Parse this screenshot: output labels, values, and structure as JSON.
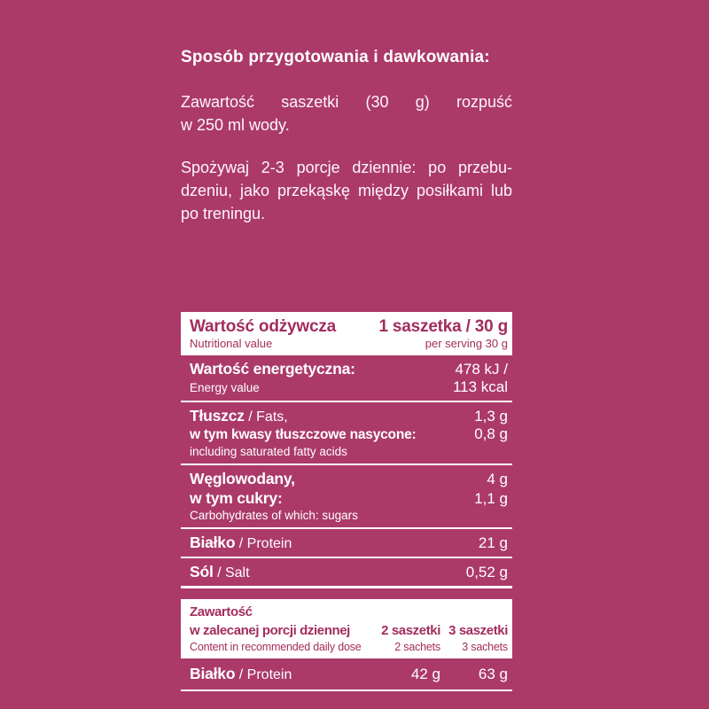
{
  "colors": {
    "background": "#ab3a68",
    "panel_white": "#ffffff",
    "accent_text": "#a32d5d",
    "light_text": "#ffffff"
  },
  "instructions": {
    "heading": "Sposób przygotowania i dawkowania:",
    "paragraph1_lines": [
      "Zawartość saszetki (30 g) rozpuść",
      "w 250 ml wody."
    ],
    "paragraph2_lines": [
      "Spożywaj 2-3 porcje dziennie: po przebu-",
      "dzeniu, jako przekąskę między posiłkami lub",
      "po treningu."
    ]
  },
  "nutrition_table": {
    "header": {
      "title_pl": "Wartość odżywcza",
      "title_en": "Nutritional value",
      "serving_pl": "1 saszetka / 30 g",
      "serving_en": "per serving 30 g"
    },
    "energy": {
      "label_pl": "Wartość energetyczna:",
      "label_en": "Energy value",
      "value_line1": "478 kJ /",
      "value_line2": "113 kcal"
    },
    "fats": {
      "label_bold": "Tłuszcz",
      "label_rest": " / Fats,",
      "sub_label_pl": "w tym kwasy tłuszczowe nasycone:",
      "sub_label_en": "including saturated fatty acids",
      "value": "1,3 g",
      "sub_value": "0,8 g"
    },
    "carbs": {
      "label_pl": "Węglowodany,",
      "sub_label_pl": "w tym cukry:",
      "sub_label_en": "Carbohydrates of which: sugars",
      "value": "4 g",
      "sub_value": "1,1 g"
    },
    "protein": {
      "label_bold": "Białko",
      "label_rest": " / Protein",
      "value": "21 g"
    },
    "salt": {
      "label_bold": "Sól",
      "label_rest": " / Salt",
      "value": "0,52 g"
    }
  },
  "daily_table": {
    "header": {
      "title_line1": "Zawartość",
      "title_line2": "w zalecanej porcji dziennej",
      "title_en": "Content in recommended daily dose",
      "col2_pl": "2 saszetki",
      "col2_en": "2 sachets",
      "col3_pl": "3 saszetki",
      "col3_en": "3 sachets"
    },
    "protein": {
      "label_bold": "Białko",
      "label_rest": " / Protein",
      "value_2": "42 g",
      "value_3": "63 g"
    }
  }
}
